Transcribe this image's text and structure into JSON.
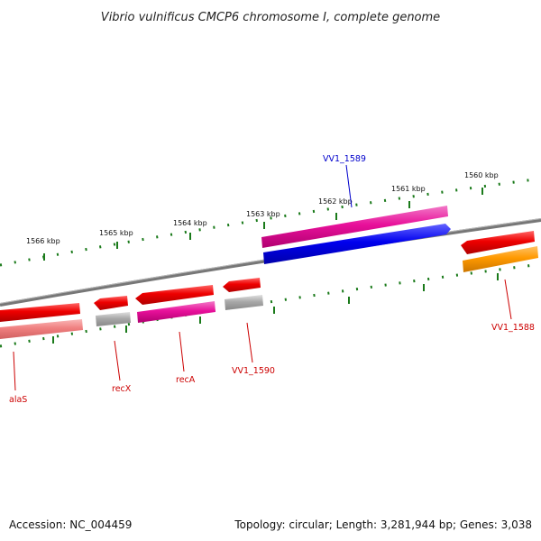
{
  "title": "Vibrio vulnificus CMCP6 chromosome I, complete genome",
  "footer": {
    "accession": "Accession: NC_004459",
    "summary": "Topology: circular; Length: 3,281,944 bp; Genes: 3,038"
  },
  "ticks": [
    {
      "label": "1566 kbp",
      "pos_kbp": 1566
    },
    {
      "label": "1565 kbp",
      "pos_kbp": 1565
    },
    {
      "label": "1564 kbp",
      "pos_kbp": 1564
    },
    {
      "label": "1563 kbp",
      "pos_kbp": 1563
    },
    {
      "label": "1562 kbp",
      "pos_kbp": 1562
    },
    {
      "label": "1561 kbp",
      "pos_kbp": 1561
    },
    {
      "label": "1560 kbp",
      "pos_kbp": 1560
    }
  ],
  "genes": [
    {
      "name": "alaS",
      "label_color": "#cc0000"
    },
    {
      "name": "recX",
      "label_color": "#cc0000"
    },
    {
      "name": "recA",
      "label_color": "#cc0000"
    },
    {
      "name": "VV1_1590",
      "label_color": "#cc0000"
    },
    {
      "name": "VV1_1589",
      "label_color": "#0000cc"
    },
    {
      "name": "VV1_1588",
      "label_color": "#cc0000"
    }
  ],
  "colors": {
    "backbone": "#7a7a7a",
    "tick": "#1a7a1a",
    "cds_red": "#ee0000",
    "cds_pink": "#e8109a",
    "cds_blue": "#0000ee",
    "cds_gray": "#a8a8a8",
    "cds_salmon": "#f08080",
    "cds_orange": "#ff9900"
  }
}
